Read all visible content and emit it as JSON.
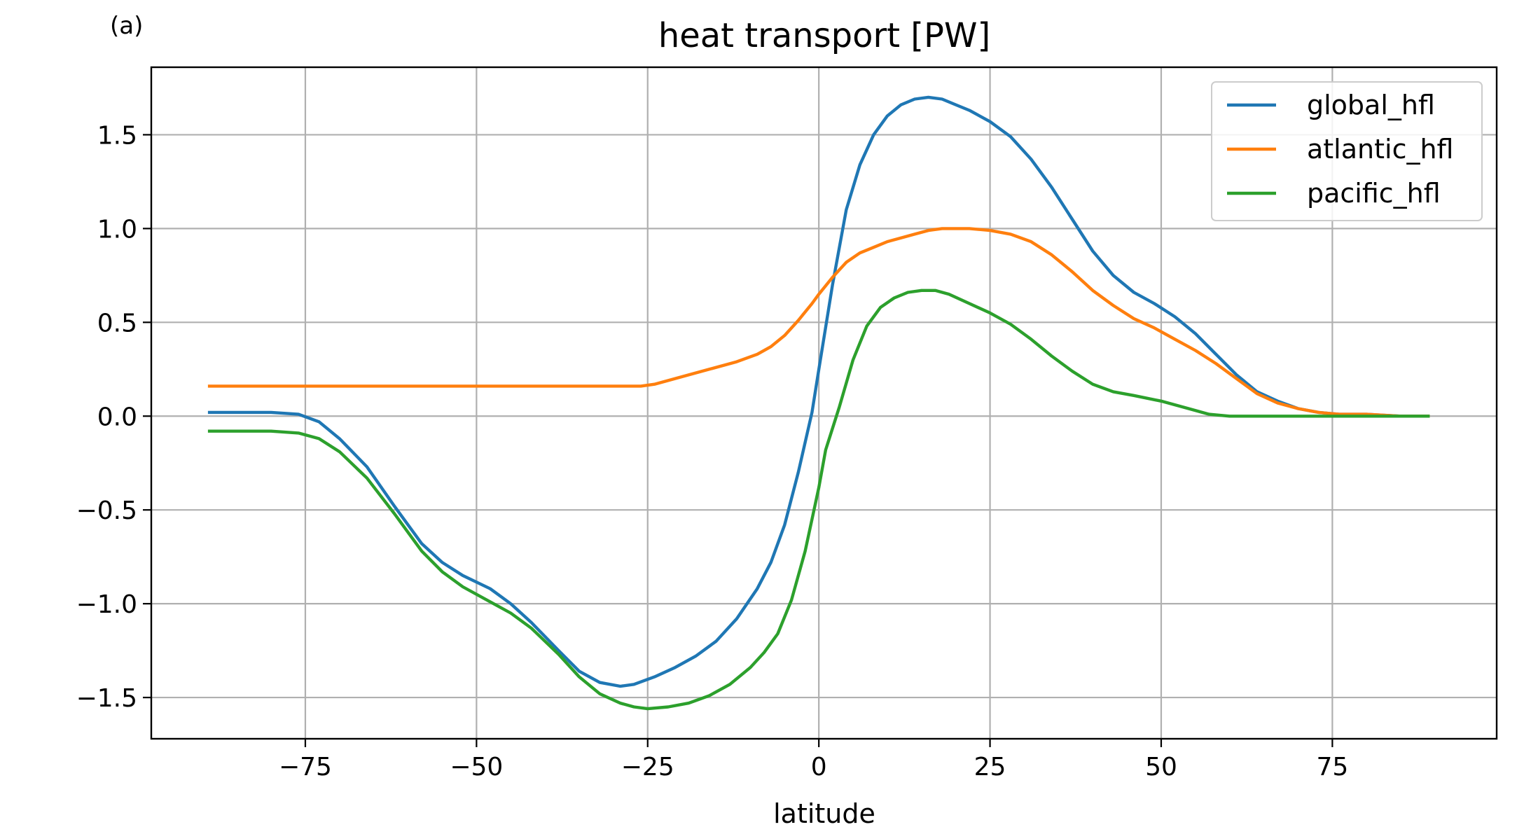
{
  "chart_data": {
    "type": "line",
    "panel_label": "(a)",
    "title": "heat transport [PW]",
    "xlabel": "latitude",
    "ylabel": "",
    "xlim": [
      -97.5,
      99
    ],
    "ylim": [
      -1.72,
      1.86
    ],
    "xticks": [
      -75,
      -50,
      -25,
      0,
      25,
      50,
      75
    ],
    "xtick_labels": [
      "−75",
      "−50",
      "−25",
      "0",
      "25",
      "50",
      "75"
    ],
    "yticks": [
      -1.5,
      -1.0,
      -0.5,
      0.0,
      0.5,
      1.0,
      1.5
    ],
    "ytick_labels": [
      "−1.5",
      "−1.0",
      "−0.5",
      "0.0",
      "0.5",
      "1.0",
      "1.5"
    ],
    "grid": true,
    "legend_position": "top-right",
    "series": [
      {
        "name": "global_hfl",
        "color": "#1f77b4",
        "x": [
          -89,
          -80,
          -76,
          -73,
          -70,
          -66,
          -62,
          -58,
          -55,
          -52,
          -48,
          -45,
          -42,
          -38,
          -35,
          -32,
          -29,
          -27,
          -24,
          -21,
          -18,
          -15,
          -12,
          -9,
          -7,
          -5,
          -3,
          -1,
          0,
          2,
          4,
          6,
          8,
          10,
          12,
          14,
          16,
          18,
          20,
          22,
          25,
          28,
          31,
          34,
          37,
          40,
          43,
          46,
          49,
          52,
          55,
          58,
          61,
          64,
          67,
          70,
          73,
          76,
          80,
          85,
          89
        ],
        "y": [
          0.02,
          0.02,
          0.01,
          -0.03,
          -0.12,
          -0.27,
          -0.48,
          -0.68,
          -0.78,
          -0.85,
          -0.92,
          -1.0,
          -1.1,
          -1.25,
          -1.36,
          -1.42,
          -1.44,
          -1.43,
          -1.39,
          -1.34,
          -1.28,
          -1.2,
          -1.08,
          -0.92,
          -0.78,
          -0.58,
          -0.3,
          0.02,
          0.25,
          0.7,
          1.1,
          1.34,
          1.5,
          1.6,
          1.66,
          1.69,
          1.7,
          1.69,
          1.66,
          1.63,
          1.57,
          1.49,
          1.37,
          1.22,
          1.05,
          0.88,
          0.75,
          0.66,
          0.6,
          0.53,
          0.44,
          0.33,
          0.22,
          0.13,
          0.08,
          0.04,
          0.02,
          0.01,
          0.01,
          0.0,
          0.0
        ]
      },
      {
        "name": "atlantic_hfl",
        "color": "#ff7f0e",
        "x": [
          -89,
          -80,
          -70,
          -60,
          -50,
          -40,
          -30,
          -26,
          -24,
          -20,
          -16,
          -12,
          -9,
          -7,
          -5,
          -3,
          -1,
          0,
          2,
          4,
          6,
          8,
          10,
          12,
          14,
          16,
          18,
          20,
          22,
          25,
          28,
          31,
          34,
          37,
          40,
          43,
          46,
          49,
          52,
          55,
          58,
          61,
          64,
          67,
          70,
          73,
          76,
          80,
          85,
          89
        ],
        "y": [
          0.16,
          0.16,
          0.16,
          0.16,
          0.16,
          0.16,
          0.16,
          0.16,
          0.17,
          0.21,
          0.25,
          0.29,
          0.33,
          0.37,
          0.43,
          0.51,
          0.6,
          0.65,
          0.74,
          0.82,
          0.87,
          0.9,
          0.93,
          0.95,
          0.97,
          0.99,
          1.0,
          1.0,
          1.0,
          0.99,
          0.97,
          0.93,
          0.86,
          0.77,
          0.67,
          0.59,
          0.52,
          0.47,
          0.41,
          0.35,
          0.28,
          0.2,
          0.12,
          0.07,
          0.04,
          0.02,
          0.01,
          0.01,
          0.0,
          0.0
        ]
      },
      {
        "name": "pacific_hfl",
        "color": "#2ca02c",
        "x": [
          -89,
          -80,
          -76,
          -73,
          -70,
          -66,
          -62,
          -58,
          -55,
          -52,
          -48,
          -45,
          -42,
          -38,
          -35,
          -32,
          -29,
          -27,
          -25,
          -22,
          -19,
          -16,
          -13,
          -10,
          -8,
          -6,
          -4,
          -2,
          0,
          1,
          3,
          5,
          7,
          9,
          11,
          13,
          15,
          17,
          19,
          22,
          25,
          28,
          31,
          34,
          37,
          40,
          43,
          46,
          50,
          54,
          57,
          60,
          65,
          70,
          80,
          89
        ],
        "y": [
          -0.08,
          -0.08,
          -0.09,
          -0.12,
          -0.19,
          -0.33,
          -0.52,
          -0.72,
          -0.83,
          -0.91,
          -0.99,
          -1.05,
          -1.13,
          -1.27,
          -1.39,
          -1.48,
          -1.53,
          -1.55,
          -1.56,
          -1.55,
          -1.53,
          -1.49,
          -1.43,
          -1.34,
          -1.26,
          -1.16,
          -0.98,
          -0.72,
          -0.38,
          -0.18,
          0.05,
          0.3,
          0.48,
          0.58,
          0.63,
          0.66,
          0.67,
          0.67,
          0.65,
          0.6,
          0.55,
          0.49,
          0.41,
          0.32,
          0.24,
          0.17,
          0.13,
          0.11,
          0.08,
          0.04,
          0.01,
          0.0,
          0.0,
          0.0,
          0.0,
          0.0
        ]
      }
    ]
  }
}
